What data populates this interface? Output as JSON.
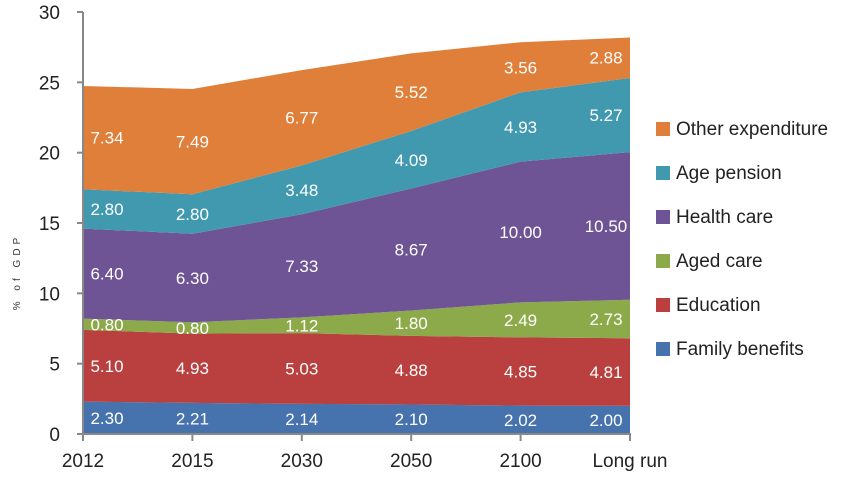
{
  "chart_data": {
    "type": "area",
    "stacked": true,
    "title": "",
    "xlabel": "",
    "ylabel": "% of GDP",
    "categories": [
      "2012",
      "2015",
      "2030",
      "2050",
      "2100",
      "Long run"
    ],
    "ylim": [
      0,
      30
    ],
    "yticks": [
      0,
      5,
      10,
      15,
      20,
      25,
      30
    ],
    "grid": false,
    "legend_position": "right",
    "series": [
      {
        "name": "Family benefits",
        "color": "#4672AE",
        "values": [
          2.3,
          2.21,
          2.14,
          2.1,
          2.02,
          2.0
        ],
        "labels": [
          "2.30",
          "2.21",
          "2.14",
          "2.10",
          "2.02",
          "2.00"
        ]
      },
      {
        "name": "Education",
        "color": "#B9403F",
        "values": [
          5.1,
          4.93,
          5.03,
          4.88,
          4.85,
          4.81
        ],
        "labels": [
          "5.10",
          "4.93",
          "5.03",
          "4.88",
          "4.85",
          "4.81"
        ]
      },
      {
        "name": "Aged care",
        "color": "#8DAA4B",
        "values": [
          0.8,
          0.8,
          1.12,
          1.8,
          2.49,
          2.73
        ],
        "labels": [
          "0.80",
          "0.80",
          "1.12",
          "1.80",
          "2.49",
          "2.73"
        ]
      },
      {
        "name": "Health care",
        "color": "#6E5494",
        "values": [
          6.4,
          6.3,
          7.33,
          8.67,
          10.0,
          10.5
        ],
        "labels": [
          "6.40",
          "6.30",
          "7.33",
          "8.67",
          "10.00",
          "10.50"
        ]
      },
      {
        "name": "Age pension",
        "color": "#4199B0",
        "values": [
          2.8,
          2.8,
          3.48,
          4.09,
          4.93,
          5.27
        ],
        "labels": [
          "2.80",
          "2.80",
          "3.48",
          "4.09",
          "4.93",
          "5.27"
        ]
      },
      {
        "name": "Other expenditure",
        "color": "#E07F3A",
        "values": [
          7.34,
          7.49,
          6.77,
          5.52,
          3.56,
          2.88
        ],
        "labels": [
          "7.34",
          "7.49",
          "6.77",
          "5.52",
          "3.56",
          "2.88"
        ]
      }
    ],
    "legend_order": [
      "Other expenditure",
      "Age pension",
      "Health care",
      "Aged care",
      "Education",
      "Family benefits"
    ]
  }
}
